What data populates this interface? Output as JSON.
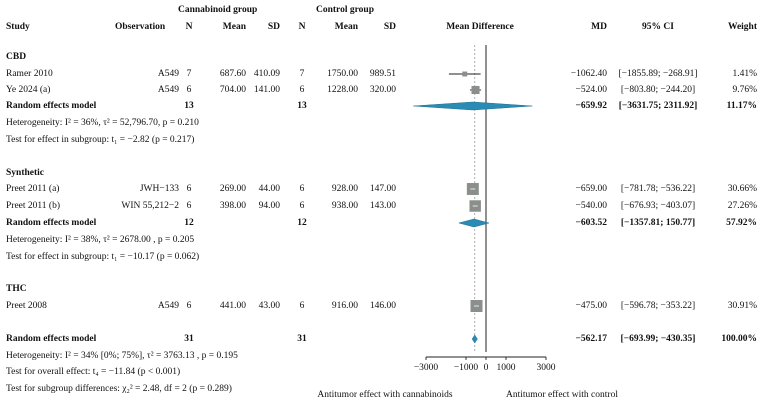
{
  "chart_data": {
    "type": "forest",
    "group_headers": {
      "treat": "Cannabinoid group",
      "control": "Control group"
    },
    "columns": {
      "study": "Study",
      "observation": "Observation",
      "n1": "N",
      "mean1": "Mean",
      "sd1": "SD",
      "n2": "N",
      "mean2": "Mean",
      "sd2": "SD",
      "plot": "Mean Difference",
      "md": "MD",
      "ci": "95% CI",
      "weight": "Weight"
    },
    "xlim": [
      -3000,
      3000
    ],
    "ticks": [
      {
        "v": -3000,
        "label": "−3000"
      },
      {
        "v": -1000,
        "label": "−1000"
      },
      {
        "v": 0,
        "label": "0"
      },
      {
        "v": 1000,
        "label": "1000"
      },
      {
        "v": 3000,
        "label": "3000"
      }
    ],
    "xlabel_left": "Antitumor effect with cannabinoids",
    "xlabel_right": "Antitumor effect with control",
    "overall_md": -562.17,
    "subgroups": [
      {
        "name": "CBD",
        "studies": [
          {
            "study": "Ramer 2010",
            "observation": "A549",
            "n1": "7",
            "mean1": "687.60",
            "sd1": "410.09",
            "n2": "7",
            "mean2": "1750.00",
            "sd2": "989.51",
            "md": -1062.4,
            "lo": -1855.89,
            "hi": -268.91,
            "md_text": "−1062.40",
            "ci_text": "[−1855.89; −268.91]",
            "weight_text": "1.41%",
            "weight": 1.41
          },
          {
            "study": "Ye 2024 (a)",
            "observation": "A549",
            "n1": "6",
            "mean1": "704.00",
            "sd1": "141.00",
            "n2": "6",
            "mean2": "1228.00",
            "sd2": "320.00",
            "md": -524.0,
            "lo": -803.8,
            "hi": -244.2,
            "md_text": "−524.00",
            "ci_text": "[−803.80; −244.20]",
            "weight_text": "9.76%",
            "weight": 9.76
          }
        ],
        "pooled": {
          "label": "Random effects model",
          "n1": "13",
          "n2": "13",
          "md": -659.92,
          "lo": -3631.75,
          "hi": 2311.92,
          "md_text": "−659.92",
          "ci_text": "[−3631.75; 2311.92]",
          "weight_text": "11.17%"
        },
        "heterogeneity_prefix": "Heterogeneity:",
        "heterogeneity": "I² = 36%, τ² = 52,796.70, p = 0.210",
        "effect_test_prefix": "Test for effect in subgroup:",
        "effect_test": "t₁ = −2.82 (p = 0.217)"
      },
      {
        "name": "Synthetic",
        "studies": [
          {
            "study": "Preet 2011 (a)",
            "observation": "JWH−133",
            "n1": "6",
            "mean1": "269.00",
            "sd1": "44.00",
            "n2": "6",
            "mean2": "928.00",
            "sd2": "147.00",
            "md": -659.0,
            "lo": -781.78,
            "hi": -536.22,
            "md_text": "−659.00",
            "ci_text": "[−781.78; −536.22]",
            "weight_text": "30.66%",
            "weight": 30.66
          },
          {
            "study": "Preet 2011 (b)",
            "observation": "WIN 55,212−2",
            "n1": "6",
            "mean1": "398.00",
            "sd1": "94.00",
            "n2": "6",
            "mean2": "938.00",
            "sd2": "143.00",
            "md": -540.0,
            "lo": -676.93,
            "hi": -403.07,
            "md_text": "−540.00",
            "ci_text": "[−676.93; −403.07]",
            "weight_text": "27.26%",
            "weight": 27.26
          }
        ],
        "pooled": {
          "label": "Random effects model",
          "n1": "12",
          "n2": "12",
          "md": -603.52,
          "lo": -1357.81,
          "hi": 150.77,
          "md_text": "−603.52",
          "ci_text": "[−1357.81; 150.77]",
          "weight_text": "57.92%"
        },
        "heterogeneity_prefix": "Heterogeneity:",
        "heterogeneity": "I² = 38%, τ² = 2678.00 , p = 0.205",
        "effect_test_prefix": "Test for effect in subgroup:",
        "effect_test": "t₁ = −10.17 (p = 0.062)"
      },
      {
        "name": "THC",
        "studies": [
          {
            "study": "Preet 2008",
            "observation": "A549",
            "n1": "6",
            "mean1": "441.00",
            "sd1": "43.00",
            "n2": "6",
            "mean2": "916.00",
            "sd2": "146.00",
            "md": -475.0,
            "lo": -596.78,
            "hi": -353.22,
            "md_text": "−475.00",
            "ci_text": "[−596.78; −353.22]",
            "weight_text": "30.91%",
            "weight": 30.91
          }
        ]
      }
    ],
    "overall": {
      "label": "Random effects model",
      "n1": "31",
      "n2": "31",
      "md": -562.17,
      "lo": -693.99,
      "hi": -430.35,
      "md_text": "−562.17",
      "ci_text": "[−693.99; −430.35]",
      "weight_text": "100.00%"
    },
    "footer": {
      "heterogeneity_prefix": "Heterogeneity:",
      "heterogeneity": "I² = 34% [0%; 75%], τ² = 3763.13 , p = 0.195",
      "overall_test_prefix": "Test for overall effect:",
      "overall_test": "t₄ = −11.84 (p < 0.001)",
      "subgroup_test_prefix": "Test for subgroup differences:",
      "subgroup_test": "χ₂² = 2.48, df = 2 (p = 0.289)"
    },
    "colors": {
      "square": "#8a8f8b",
      "diamond": "#2a8cb4",
      "line": "#222222",
      "ref": "#9a9a9a"
    }
  }
}
